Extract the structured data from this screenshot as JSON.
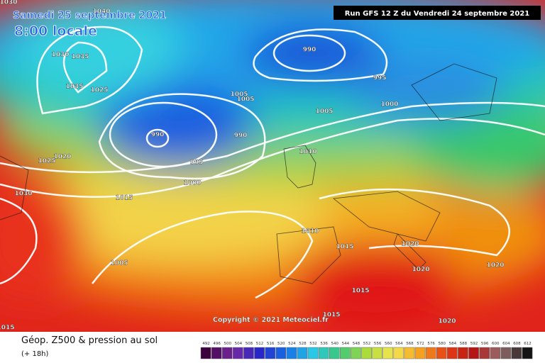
{
  "header": {
    "date": "Samedi 25 septembre 2021",
    "time": "8:00 locale",
    "run": "Run GFS 12 Z du Vendredi 24 septembre 2021"
  },
  "copyright": "Copyright © 2021 Meteociel.fr",
  "isobar_labels": [
    1030,
    1040,
    1030,
    1035,
    1035,
    1025,
    990,
    995,
    1005,
    1005,
    1000,
    1005,
    990,
    990,
    1020,
    1025,
    995,
    1010,
    1000,
    1030,
    1015,
    1010,
    1015,
    1020,
    1020,
    1020,
    1005,
    1015,
    1015,
    1020,
    1015
  ],
  "footer": {
    "title": "Géop. Z500 & pression au sol",
    "lead": "(+ 18h)"
  },
  "legend": {
    "values": [
      492,
      496,
      500,
      504,
      508,
      512,
      516,
      520,
      524,
      528,
      532,
      536,
      540,
      544,
      548,
      552,
      556,
      560,
      564,
      568,
      572,
      576,
      580,
      584,
      588,
      592,
      596,
      600,
      604,
      608,
      612
    ]
  }
}
